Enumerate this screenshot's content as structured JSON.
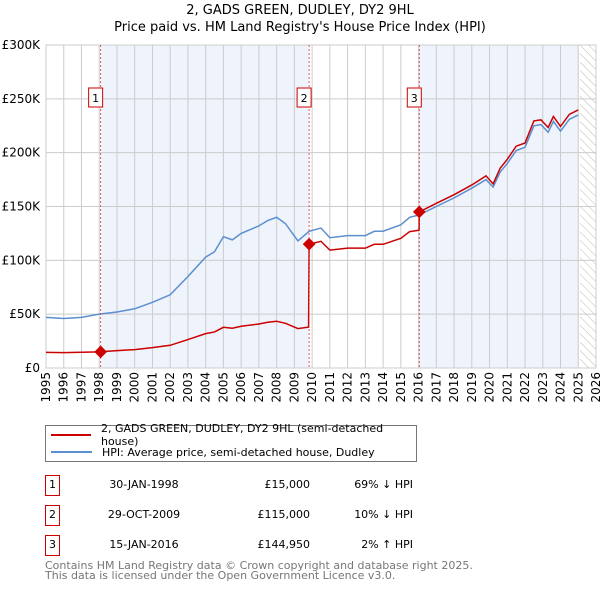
{
  "title": "2, GADS GREEN, DUDLEY, DY2 9HL",
  "subtitle": "Price paid vs. HM Land Registry's House Price Index (HPI)",
  "chart_data": {
    "type": "line",
    "title": "2, GADS GREEN, DUDLEY, DY2 9HL",
    "subtitle": "Price paid vs. HM Land Registry's House Price Index (HPI)",
    "xlim": [
      1995,
      2026
    ],
    "ylim": [
      0,
      300000
    ],
    "grid": true,
    "x_ticks": [
      "1995",
      "1996",
      "1997",
      "1998",
      "1999",
      "2000",
      "2001",
      "2002",
      "2003",
      "2004",
      "2005",
      "2006",
      "2007",
      "2008",
      "2009",
      "2010",
      "2011",
      "2012",
      "2013",
      "2014",
      "2015",
      "2016",
      "2017",
      "2018",
      "2019",
      "2020",
      "2021",
      "2022",
      "2023",
      "2024",
      "2025",
      "2026"
    ],
    "y_ticks": [
      {
        "v": 0,
        "label": "£0"
      },
      {
        "v": 50000,
        "label": "£50K"
      },
      {
        "v": 100000,
        "label": "£100K"
      },
      {
        "v": 150000,
        "label": "£150K"
      },
      {
        "v": 200000,
        "label": "£200K"
      },
      {
        "v": 250000,
        "label": "£250K"
      },
      {
        "v": 300000,
        "label": "£300K"
      }
    ],
    "shaded_ranges": [
      [
        1998.08,
        2009.83
      ],
      [
        2016.04,
        2025.0
      ]
    ],
    "hatched_from": 2025.1,
    "series": [
      {
        "name": "2, GADS GREEN, DUDLEY, DY2 9HL (semi-detached house)",
        "color": "#cc0000",
        "x": [
          1995,
          1996,
          1997,
          1998,
          1999,
          2000,
          2001,
          2002,
          2003,
          2004,
          2004.5,
          2005,
          2005.5,
          2006,
          2007,
          2007.5,
          2008,
          2008.5,
          2009.2,
          2009.8,
          2009.83,
          2010.5,
          2011,
          2012,
          2013,
          2013.5,
          2014,
          2015,
          2015.5,
          2016.03,
          2016.04,
          2017,
          2018,
          2019,
          2019.8,
          2020.2,
          2020.6,
          2021,
          2021.5,
          2022,
          2022.5,
          2022.9,
          2023.3,
          2023.6,
          2024,
          2024.5,
          2025
        ],
        "y": [
          14500,
          14300,
          14600,
          15000,
          16100,
          17100,
          18900,
          21100,
          26400,
          31900,
          33500,
          37800,
          36900,
          38800,
          40900,
          42500,
          43400,
          41500,
          36600,
          38000,
          115000,
          117700,
          109500,
          111300,
          111300,
          114900,
          114900,
          120400,
          126700,
          128000,
          144950,
          153000,
          161000,
          170000,
          178500,
          171000,
          185600,
          193800,
          206000,
          209000,
          229500,
          230500,
          223400,
          233600,
          224400,
          235600,
          239700
        ]
      },
      {
        "name": "HPI: Average price, semi-detached house, Dudley",
        "color": "#5b8fd0",
        "x": [
          1995,
          1996,
          1997,
          1998,
          1999,
          2000,
          2001,
          2002,
          2003,
          2004,
          2004.5,
          2005,
          2005.5,
          2006,
          2007,
          2007.5,
          2008,
          2008.5,
          2009.2,
          2009.83,
          2010.5,
          2011,
          2012,
          2013,
          2013.5,
          2014,
          2015,
          2015.5,
          2016,
          2017,
          2018,
          2019,
          2019.8,
          2020.2,
          2020.6,
          2021,
          2021.5,
          2022,
          2022.5,
          2022.9,
          2023.3,
          2023.6,
          2024,
          2024.5,
          2025
        ],
        "y": [
          47000,
          46000,
          47000,
          50000,
          52000,
          55000,
          61000,
          68000,
          85000,
          103000,
          108000,
          122000,
          119000,
          125000,
          132000,
          137000,
          140000,
          134000,
          118000,
          127000,
          130000,
          121000,
          123000,
          123000,
          127000,
          127000,
          133000,
          140000,
          142000,
          150000,
          158000,
          167000,
          175000,
          168000,
          182000,
          190000,
          202000,
          205000,
          225000,
          226000,
          219000,
          229000,
          220000,
          231000,
          235000
        ]
      }
    ],
    "sales": [
      {
        "id": "1",
        "x": 1998.08,
        "y": 15000
      },
      {
        "id": "2",
        "x": 2009.83,
        "y": 115000
      },
      {
        "id": "3",
        "x": 2016.04,
        "y": 144950
      }
    ]
  },
  "legend": {
    "property": "2, GADS GREEN, DUDLEY, DY2 9HL (semi-detached house)",
    "hpi": "HPI: Average price, semi-detached house, Dudley"
  },
  "transactions": [
    {
      "id": "1",
      "date": "30-JAN-1998",
      "price": "£15,000",
      "hpi": "69% ↓ HPI"
    },
    {
      "id": "2",
      "date": "29-OCT-2009",
      "price": "£115,000",
      "hpi": "10% ↓ HPI"
    },
    {
      "id": "3",
      "date": "15-JAN-2016",
      "price": "£144,950",
      "hpi": "2% ↑ HPI"
    }
  ],
  "footer": {
    "line1": "Contains HM Land Registry data © Crown copyright and database right 2025.",
    "line2": "This data is licensed under the Open Government Licence v3.0."
  }
}
